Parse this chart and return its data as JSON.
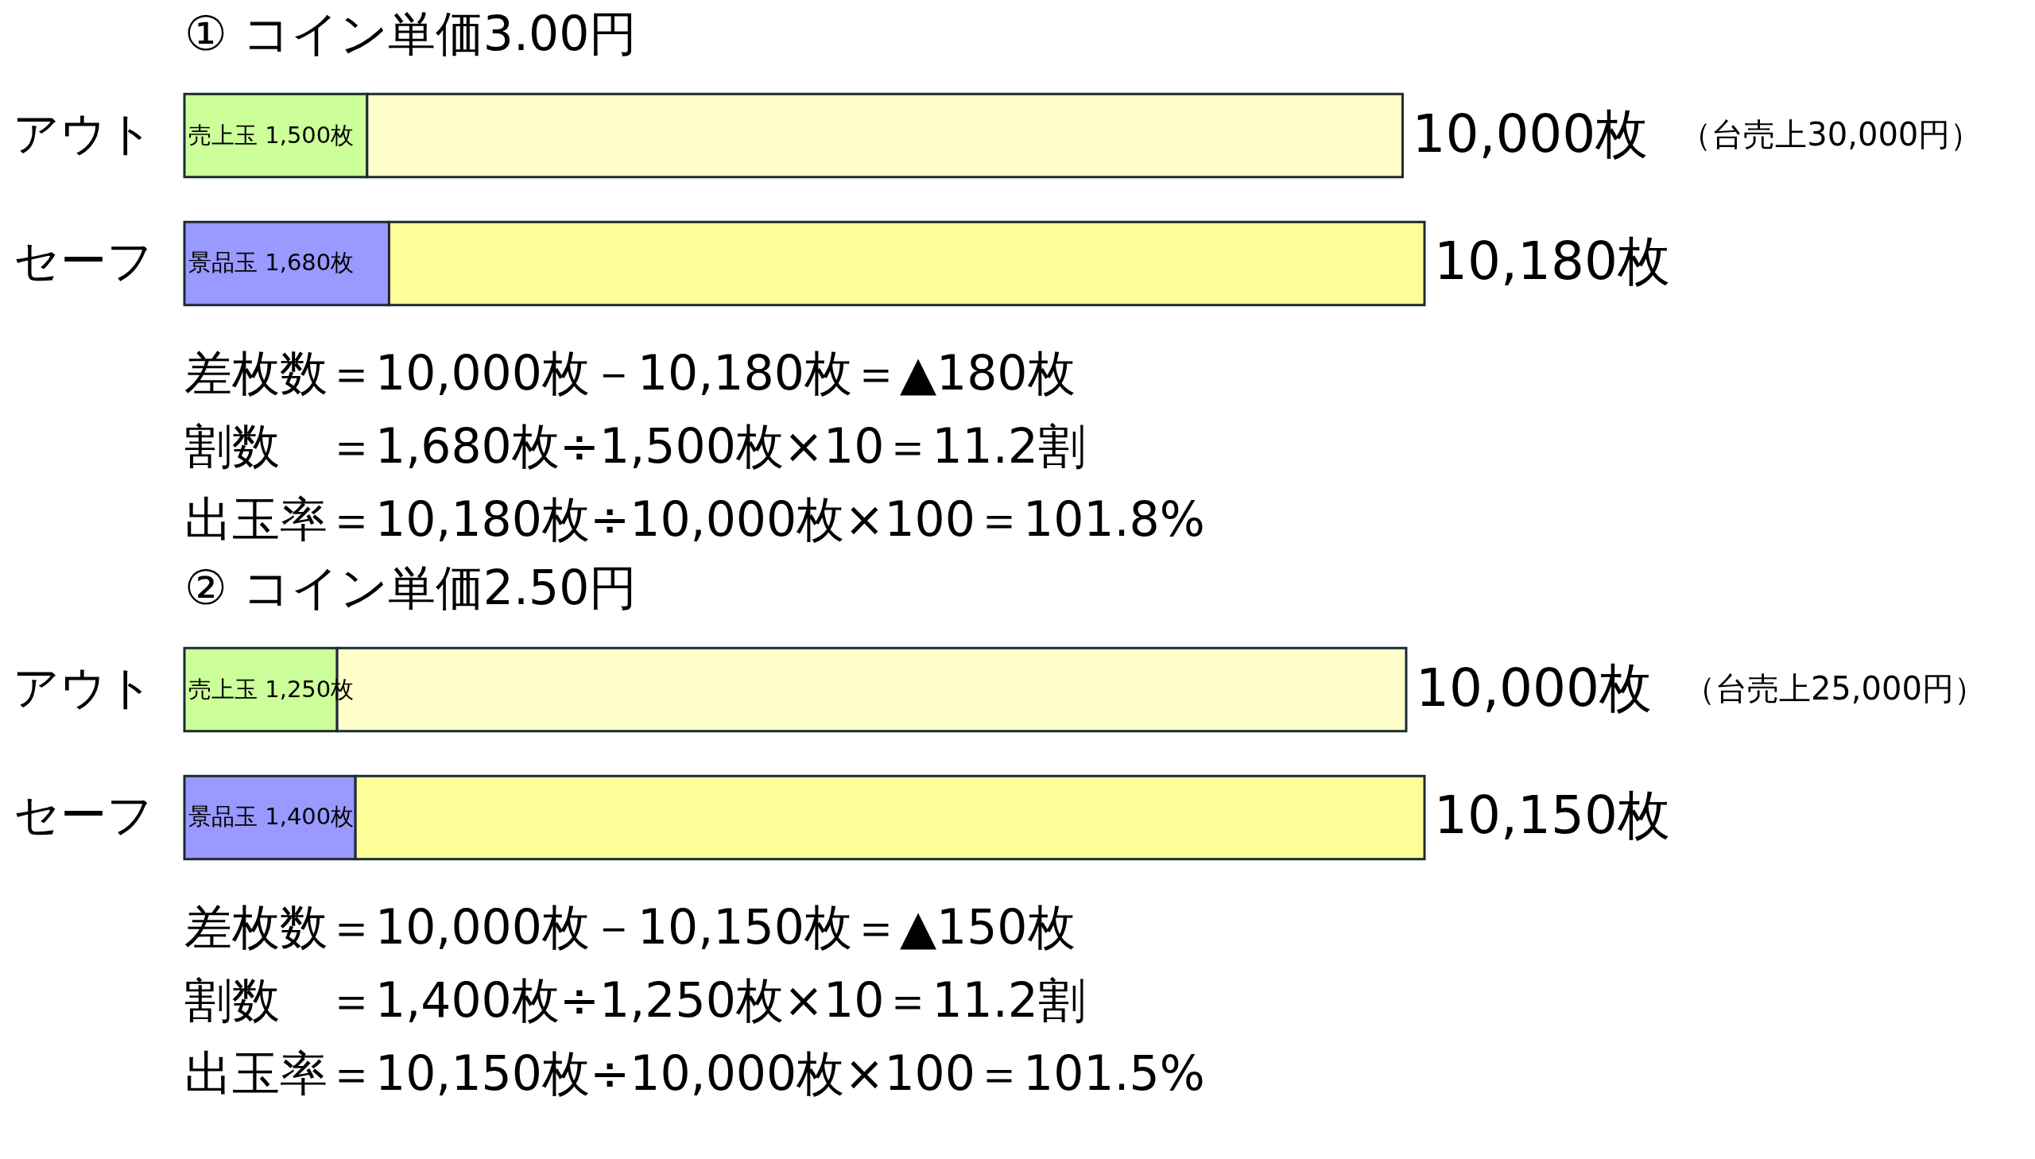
{
  "chart_data": [
    {
      "type": "bar",
      "title": "① コイン単価3.00円",
      "orientation": "horizontal",
      "stacked": true,
      "tick_labels": "y",
      "categories": [
        "アウト",
        "セーフ"
      ],
      "series": [
        {
          "colors": [
            "#ccff99",
            "#9999ff"
          ],
          "values": [
            1500,
            1680
          ],
          "value_labels": [
            "売上玉 1,500枚",
            "景品玉 1,680枚"
          ]
        },
        {
          "colors": [
            "#ffffcc",
            "#ffff99"
          ],
          "values": [
            8500,
            8500
          ]
        }
      ],
      "totals": [
        "10,000枚",
        "10,180枚"
      ],
      "annotations": [
        "（台売上30,000円）",
        "差枚数＝10,000枚－10,180枚＝▲180枚",
        "割数　＝1,680枚÷1,500枚×10＝11.2割",
        "出玉率＝10,180枚÷10,000枚×100＝101.8%"
      ]
    },
    {
      "type": "bar",
      "title": "② コイン単価2.50円",
      "orientation": "horizontal",
      "stacked": true,
      "tick_labels": "y",
      "categories": [
        "アウト",
        "セーフ"
      ],
      "series": [
        {
          "colors": [
            "#ccff99",
            "#9999ff"
          ],
          "values": [
            1250,
            1400
          ],
          "value_labels": [
            "売上玉 1,250枚",
            "景品玉 1,400枚"
          ]
        },
        {
          "colors": [
            "#ffffcc",
            "#ffff99"
          ],
          "values": [
            8750,
            8750
          ]
        }
      ],
      "totals": [
        "10,000枚",
        "10,150枚"
      ],
      "annotations": [
        "（台売上25,000円）",
        "差枚数＝10,000枚－10,150枚＝▲150枚",
        "割数　＝1,400枚÷1,250枚×10＝11.2割",
        "出玉率＝10,150枚÷10,000枚×100＝101.5%"
      ]
    }
  ]
}
